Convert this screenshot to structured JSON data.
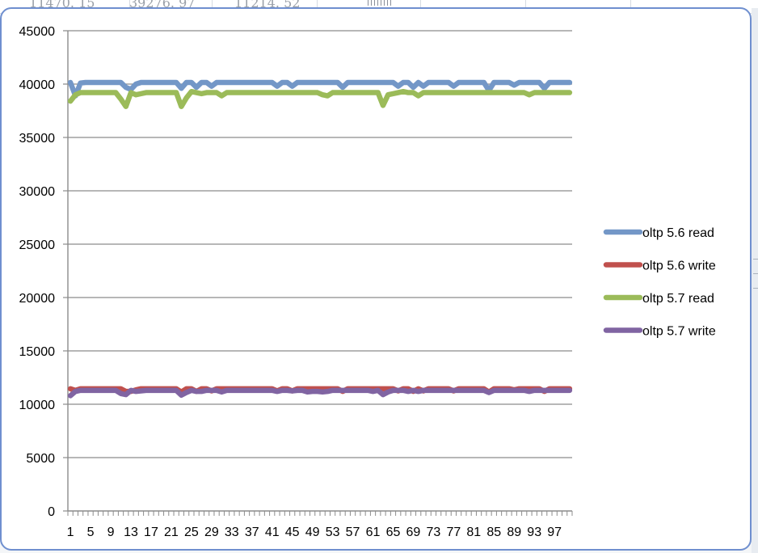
{
  "sheet": {
    "cells": [
      "11470. 15",
      "39276. 97",
      "11214. 52"
    ]
  },
  "chart_data": {
    "type": "line",
    "title": "",
    "xlabel": "",
    "ylabel": "",
    "ylim": [
      0,
      45000
    ],
    "yticks": [
      0,
      5000,
      10000,
      15000,
      20000,
      25000,
      30000,
      35000,
      40000,
      45000
    ],
    "grid": true,
    "legend_position": "right",
    "x": [
      1,
      2,
      3,
      4,
      5,
      6,
      7,
      8,
      9,
      10,
      11,
      12,
      13,
      14,
      15,
      16,
      17,
      18,
      19,
      20,
      21,
      22,
      23,
      24,
      25,
      26,
      27,
      28,
      29,
      30,
      31,
      32,
      33,
      34,
      35,
      36,
      37,
      38,
      39,
      40,
      41,
      42,
      43,
      44,
      45,
      46,
      47,
      48,
      49,
      50,
      51,
      52,
      53,
      54,
      55,
      56,
      57,
      58,
      59,
      60,
      61,
      62,
      63,
      64,
      65,
      66,
      67,
      68,
      69,
      70,
      71,
      72,
      73,
      74,
      75,
      76,
      77,
      78,
      79,
      80,
      81,
      82,
      83,
      84,
      85,
      86,
      87,
      88,
      89,
      90,
      91,
      92,
      93,
      94,
      95,
      96,
      97,
      98,
      99,
      100
    ],
    "x_tick_labels": [
      "1",
      "5",
      "9",
      "13",
      "17",
      "21",
      "25",
      "29",
      "33",
      "37",
      "41",
      "45",
      "49",
      "53",
      "57",
      "61",
      "65",
      "69",
      "73",
      "77",
      "81",
      "85",
      "89",
      "93",
      "97"
    ],
    "series": [
      {
        "name": "oltp 5.6 read",
        "color": "#7397c7",
        "values": [
          40150,
          38900,
          40100,
          40150,
          40150,
          40150,
          40150,
          40150,
          40150,
          40150,
          40150,
          39700,
          39500,
          40000,
          40150,
          40150,
          40150,
          40150,
          40150,
          40150,
          40150,
          40150,
          39600,
          40150,
          40150,
          39700,
          40150,
          40150,
          39800,
          40150,
          40150,
          40150,
          40150,
          40150,
          40150,
          40150,
          40150,
          40150,
          40150,
          40150,
          40150,
          39800,
          40150,
          40150,
          39800,
          40150,
          40150,
          40150,
          40150,
          40150,
          40150,
          40150,
          40150,
          40150,
          39700,
          40150,
          40150,
          40150,
          40150,
          40150,
          40150,
          40150,
          40150,
          40150,
          40150,
          39800,
          40150,
          40150,
          39700,
          40150,
          39800,
          40150,
          40150,
          40150,
          40150,
          40150,
          39800,
          40150,
          40150,
          40150,
          40150,
          40150,
          40150,
          39400,
          40150,
          40150,
          40150,
          40150,
          39900,
          40150,
          40150,
          40150,
          40150,
          40150,
          39600,
          40150,
          40150,
          40150,
          40150,
          40150
        ]
      },
      {
        "name": "oltp 5.6 write",
        "color": "#c0504d",
        "values": [
          11450,
          11300,
          11450,
          11450,
          11450,
          11450,
          11450,
          11450,
          11450,
          11450,
          11450,
          11200,
          11200,
          11350,
          11450,
          11450,
          11450,
          11450,
          11450,
          11450,
          11450,
          11450,
          11150,
          11450,
          11450,
          11200,
          11450,
          11450,
          11250,
          11450,
          11450,
          11450,
          11450,
          11450,
          11450,
          11450,
          11450,
          11450,
          11450,
          11450,
          11450,
          11250,
          11450,
          11450,
          11250,
          11450,
          11450,
          11450,
          11450,
          11450,
          11450,
          11450,
          11450,
          11450,
          11200,
          11450,
          11450,
          11450,
          11450,
          11450,
          11450,
          11450,
          11450,
          11450,
          11450,
          11250,
          11450,
          11450,
          11200,
          11450,
          11250,
          11450,
          11450,
          11450,
          11450,
          11450,
          11250,
          11450,
          11450,
          11450,
          11450,
          11450,
          11450,
          11150,
          11450,
          11450,
          11450,
          11450,
          11350,
          11450,
          11450,
          11450,
          11450,
          11450,
          11200,
          11450,
          11450,
          11450,
          11450,
          11450
        ]
      },
      {
        "name": "oltp 5.7 read",
        "color": "#9bbb59",
        "values": [
          38400,
          39000,
          39200,
          39200,
          39200,
          39200,
          39200,
          39200,
          39200,
          39200,
          38600,
          37900,
          39200,
          39000,
          39100,
          39200,
          39200,
          39200,
          39200,
          39200,
          39200,
          39200,
          37900,
          38700,
          39300,
          39200,
          39100,
          39200,
          39200,
          39200,
          38900,
          39200,
          39200,
          39200,
          39200,
          39200,
          39200,
          39200,
          39200,
          39200,
          39200,
          39200,
          39200,
          39200,
          39200,
          39200,
          39200,
          39200,
          39200,
          39200,
          39000,
          38900,
          39200,
          39200,
          39200,
          39200,
          39200,
          39200,
          39200,
          39200,
          39200,
          39200,
          38000,
          39000,
          39100,
          39200,
          39300,
          39200,
          39200,
          38900,
          39200,
          39200,
          39200,
          39200,
          39200,
          39200,
          39200,
          39200,
          39200,
          39200,
          39200,
          39200,
          39200,
          39200,
          39200,
          39200,
          39200,
          39200,
          39200,
          39200,
          39200,
          39000,
          39200,
          39200,
          39200,
          39200,
          39200,
          39200,
          39200,
          39200
        ]
      },
      {
        "name": "oltp 5.7 write",
        "color": "#8064a2",
        "values": [
          10800,
          11200,
          11300,
          11300,
          11300,
          11300,
          11300,
          11300,
          11300,
          11300,
          11000,
          10900,
          11300,
          11200,
          11250,
          11300,
          11300,
          11300,
          11300,
          11300,
          11300,
          11300,
          10850,
          11100,
          11300,
          11200,
          11200,
          11300,
          11300,
          11300,
          11150,
          11300,
          11300,
          11300,
          11300,
          11300,
          11300,
          11300,
          11300,
          11300,
          11300,
          11200,
          11300,
          11300,
          11250,
          11300,
          11300,
          11150,
          11200,
          11200,
          11150,
          11200,
          11300,
          11300,
          11300,
          11300,
          11300,
          11300,
          11300,
          11300,
          11200,
          11300,
          10900,
          11150,
          11300,
          11300,
          11300,
          11200,
          11300,
          11200,
          11300,
          11300,
          11300,
          11300,
          11300,
          11300,
          11300,
          11300,
          11300,
          11300,
          11300,
          11300,
          11300,
          11100,
          11300,
          11300,
          11300,
          11300,
          11300,
          11300,
          11300,
          11200,
          11300,
          11300,
          11300,
          11300,
          11300,
          11300,
          11300,
          11300
        ]
      }
    ]
  }
}
